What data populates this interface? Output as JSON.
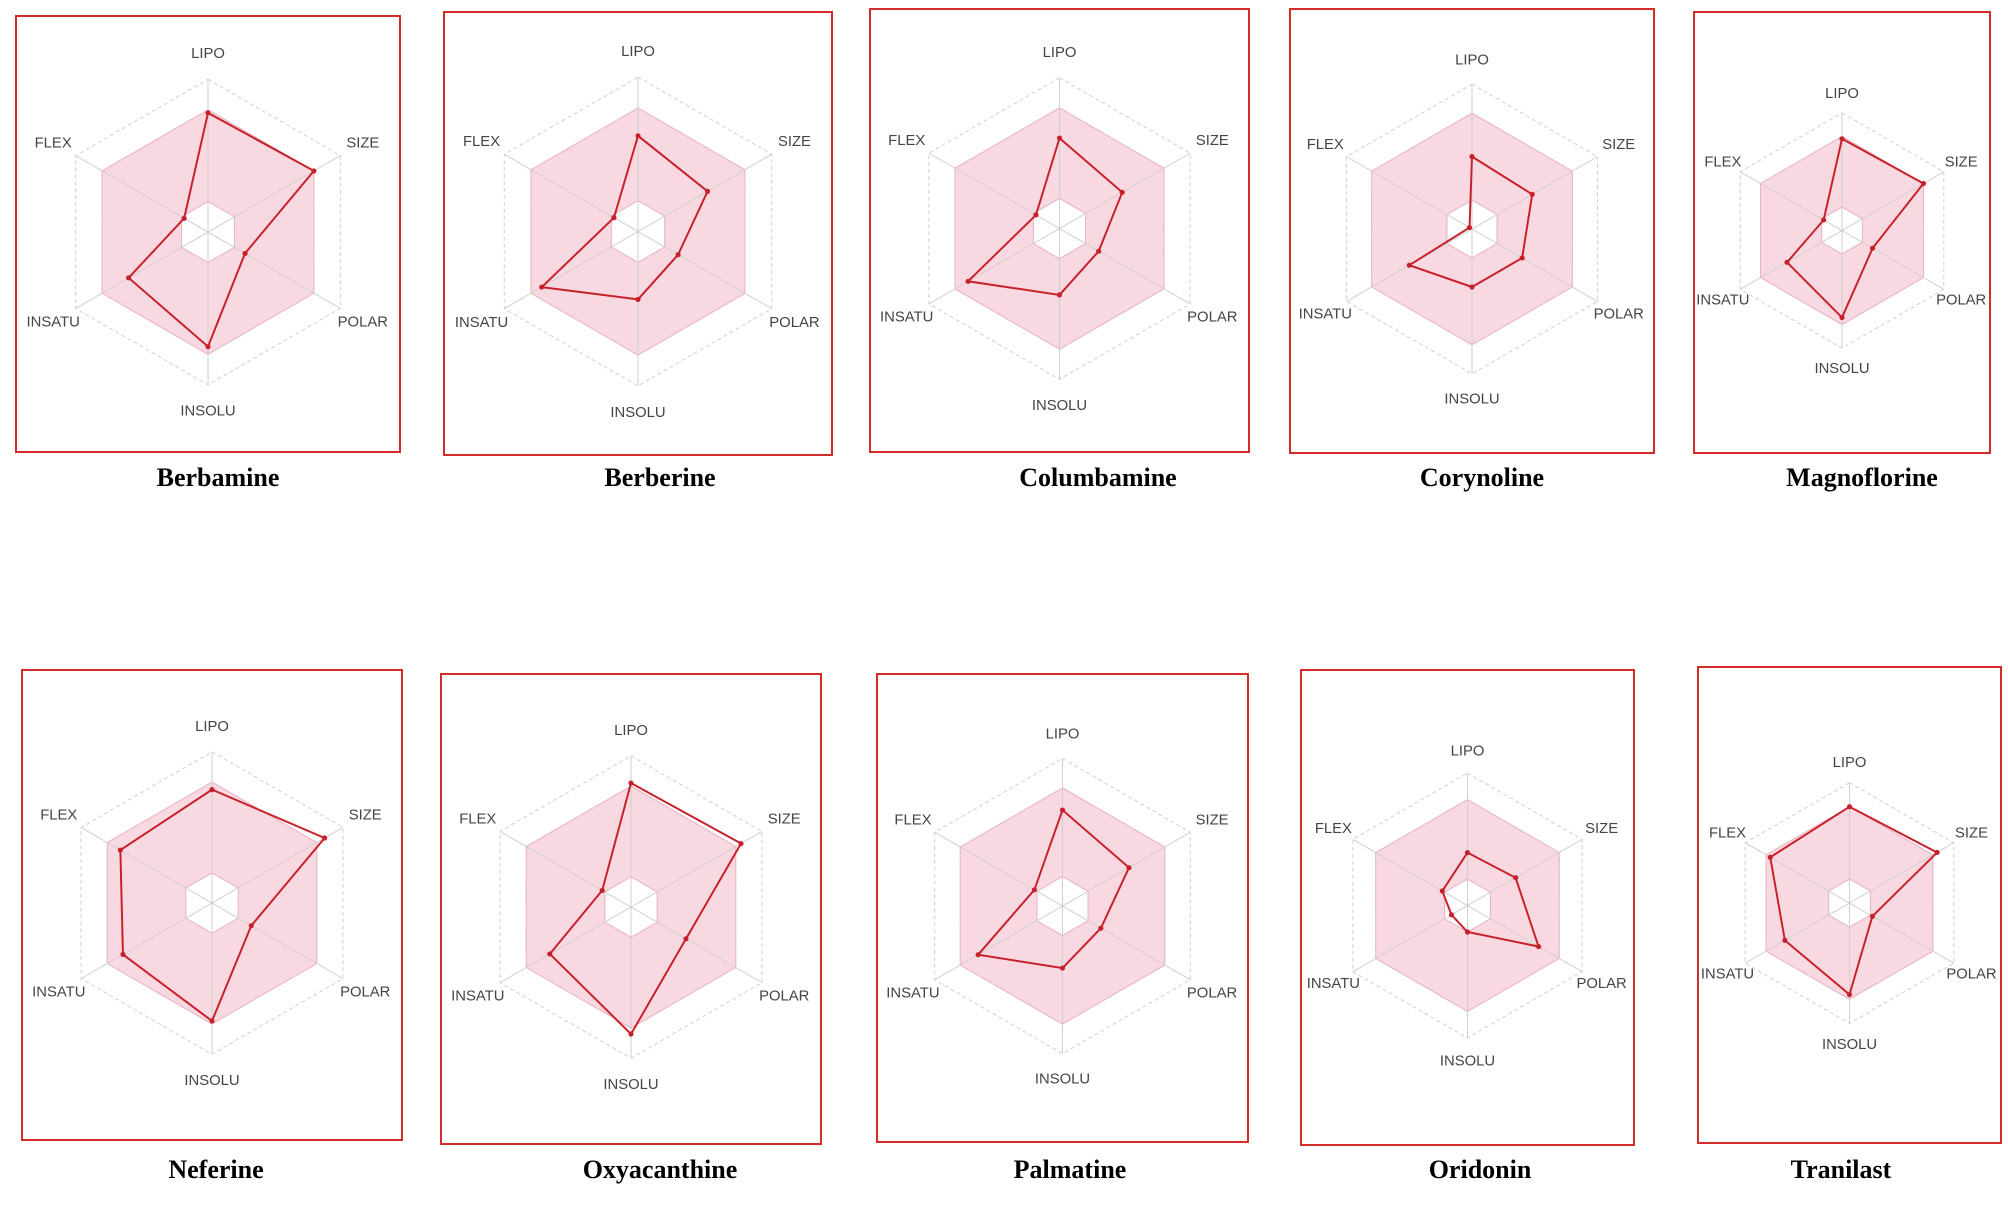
{
  "axes": [
    "LIPO",
    "SIZE",
    "POLAR",
    "INSOLU",
    "INSATU",
    "FLEX"
  ],
  "colors": {
    "frame": "#d62b2b",
    "compound_line": "#c8202a",
    "optimal_fill": "#f9d9e1",
    "optimal_stroke": "#eab2c0",
    "grid": "#cfcfcf",
    "axis_label": "#444444"
  },
  "chart_data": [
    {
      "type": "radar",
      "title": "Berbamine",
      "ring_range": [
        0,
        1
      ],
      "optimal_range": [
        0.2,
        0.8
      ],
      "values": [
        0.78,
        0.8,
        0.28,
        0.75,
        0.6,
        0.18
      ]
    },
    {
      "type": "radar",
      "title": "Berberine",
      "ring_range": [
        0,
        1
      ],
      "optimal_range": [
        0.2,
        0.8
      ],
      "values": [
        0.62,
        0.52,
        0.3,
        0.44,
        0.72,
        0.18
      ]
    },
    {
      "type": "radar",
      "title": "Columbamine",
      "ring_range": [
        0,
        1
      ],
      "optimal_range": [
        0.2,
        0.8
      ],
      "values": [
        0.6,
        0.48,
        0.3,
        0.44,
        0.7,
        0.18
      ]
    },
    {
      "type": "radar",
      "title": "Corynoline",
      "ring_range": [
        0,
        1
      ],
      "optimal_range": [
        0.2,
        0.8
      ],
      "values": [
        0.5,
        0.48,
        0.4,
        0.4,
        0.5,
        0.02
      ]
    },
    {
      "type": "radar",
      "title": "Magnoflorine",
      "ring_range": [
        0,
        1
      ],
      "optimal_range": [
        0.2,
        0.8
      ],
      "values": [
        0.78,
        0.8,
        0.3,
        0.74,
        0.54,
        0.18
      ]
    },
    {
      "type": "radar",
      "title": "Neferine",
      "ring_range": [
        0,
        1
      ],
      "optimal_range": [
        0.2,
        0.8
      ],
      "values": [
        0.75,
        0.86,
        0.3,
        0.78,
        0.68,
        0.7
      ]
    },
    {
      "type": "radar",
      "title": "Oxyacanthine",
      "ring_range": [
        0,
        1
      ],
      "optimal_range": [
        0.2,
        0.8
      ],
      "values": [
        0.82,
        0.84,
        0.42,
        0.84,
        0.62,
        0.22
      ]
    },
    {
      "type": "radar",
      "title": "Palmatine",
      "ring_range": [
        0,
        1
      ],
      "optimal_range": [
        0.2,
        0.8
      ],
      "values": [
        0.65,
        0.52,
        0.3,
        0.42,
        0.66,
        0.22
      ]
    },
    {
      "type": "radar",
      "title": "Oridonin",
      "ring_range": [
        0,
        1
      ],
      "optimal_range": [
        0.2,
        0.8
      ],
      "values": [
        0.4,
        0.42,
        0.62,
        0.2,
        0.14,
        0.22
      ]
    },
    {
      "type": "radar",
      "title": "Tranilast",
      "ring_range": [
        0,
        1
      ],
      "optimal_range": [
        0.2,
        0.8
      ],
      "values": [
        0.8,
        0.84,
        0.22,
        0.76,
        0.62,
        0.76
      ]
    }
  ]
}
